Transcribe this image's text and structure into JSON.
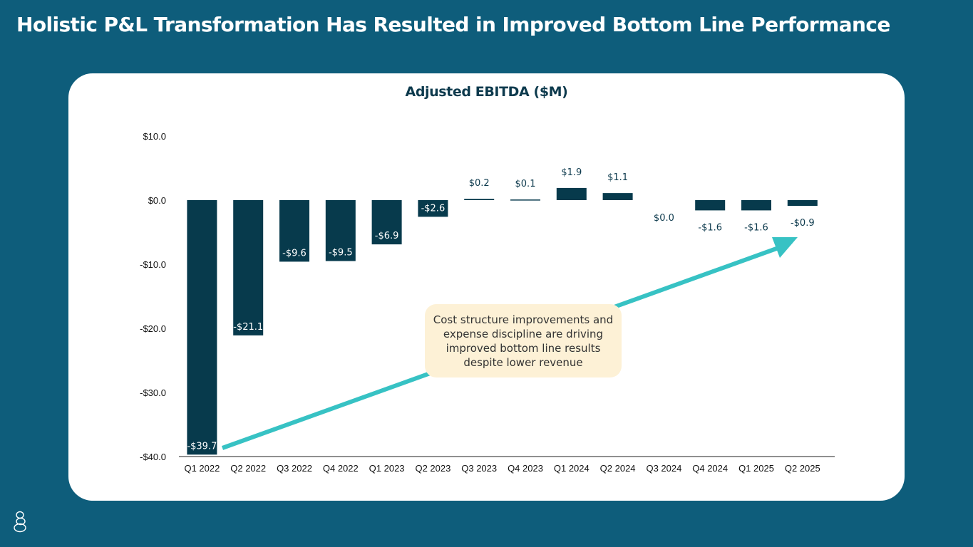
{
  "slide": {
    "title": "Holistic P&L Transformation Has Resulted in Improved Bottom Line Performance",
    "callout": "Cost structure improvements and expense discipline are driving improved bottom line results despite lower revenue"
  },
  "colors": {
    "background": "#0e5d7b",
    "card": "#ffffff",
    "bar": "#073a4c",
    "arrow": "#37c2c4",
    "callout_bg": "#fdf1d6"
  },
  "chart_data": {
    "type": "bar",
    "title": "Adjusted EBITDA ($M)",
    "xlabel": "",
    "ylabel": "",
    "ylim": [
      -40,
      10
    ],
    "yticks": [
      10,
      0,
      -10,
      -20,
      -30,
      -40
    ],
    "ytick_labels": [
      "$10.0",
      "$0.0",
      "-$10.0",
      "-$20.0",
      "-$30.0",
      "-$40.0"
    ],
    "categories": [
      "Q1 2022",
      "Q2 2022",
      "Q3 2022",
      "Q4 2022",
      "Q1 2023",
      "Q2 2023",
      "Q3 2023",
      "Q4 2023",
      "Q1 2024",
      "Q2 2024",
      "Q3 2024",
      "Q4 2024",
      "Q1 2025",
      "Q2 2025"
    ],
    "values": [
      -39.7,
      -21.1,
      -9.6,
      -9.5,
      -6.9,
      -2.6,
      0.2,
      0.1,
      1.9,
      1.1,
      0.0,
      -1.6,
      -1.6,
      -0.9
    ],
    "data_labels": [
      "-$39.7",
      "-$21.1",
      "-$9.6",
      "-$9.5",
      "-$6.9",
      "-$2.6",
      "$0.2",
      "$0.1",
      "$1.9",
      "$1.1",
      "$0.0",
      "-$1.6",
      "-$1.6",
      "-$0.9"
    ],
    "grid": false,
    "annotation": "trend arrow rising from Q1 2022 to Q2 2025"
  }
}
